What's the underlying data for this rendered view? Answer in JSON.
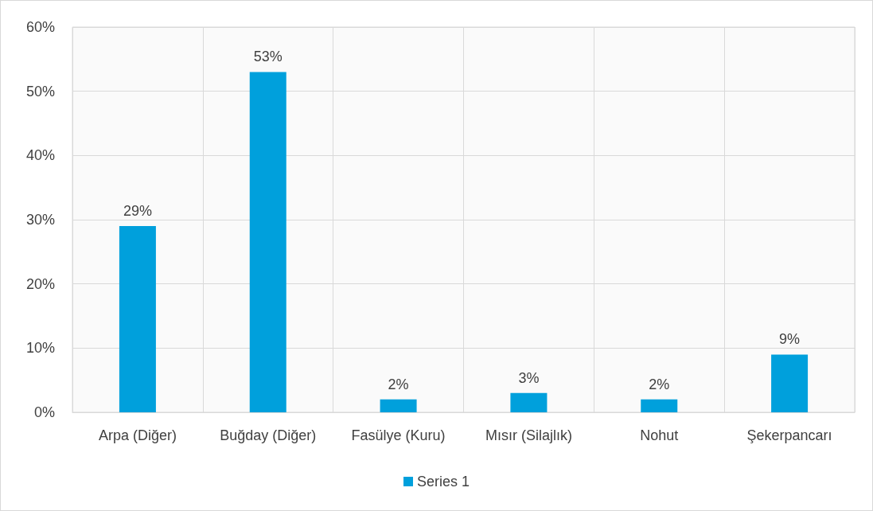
{
  "chart_data": {
    "type": "bar",
    "categories": [
      "Arpa (Diğer)",
      "Buğday (Diğer)",
      "Fasülye (Kuru)",
      "Mısır (Silajlık)",
      "Nohut",
      "Şekerpancarı"
    ],
    "series": [
      {
        "name": "Series 1",
        "color": "#00a0dc",
        "values": [
          29,
          53,
          2,
          3,
          2,
          9
        ],
        "value_labels": [
          "29%",
          "53%",
          "2%",
          "3%",
          "2%",
          "9%"
        ]
      }
    ],
    "ylim": [
      0,
      60
    ],
    "yticks": [
      {
        "value": 0,
        "label": "0%"
      },
      {
        "value": 10,
        "label": "10%"
      },
      {
        "value": 20,
        "label": "20%"
      },
      {
        "value": 30,
        "label": "30%"
      },
      {
        "value": 40,
        "label": "40%"
      },
      {
        "value": 50,
        "label": "50%"
      },
      {
        "value": 60,
        "label": "60%"
      }
    ],
    "grid": true,
    "legend": "bottom"
  }
}
